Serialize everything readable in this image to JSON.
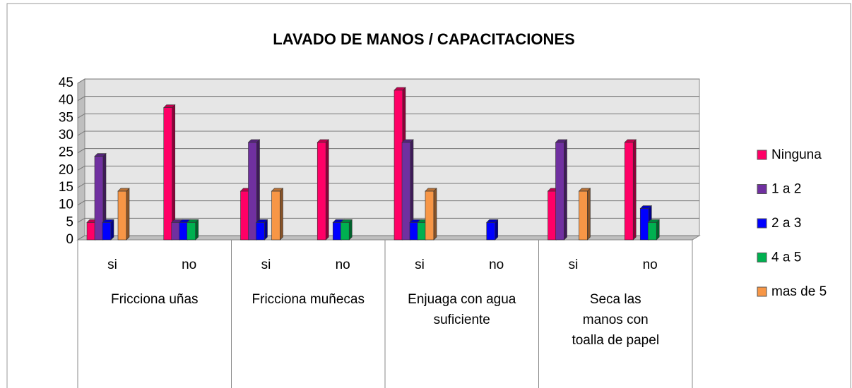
{
  "chart_data": {
    "type": "bar",
    "title": "LAVADO DE MANOS / CAPACITACIONES",
    "categories": [
      "si",
      "no",
      "si",
      "no",
      "si",
      "no",
      "si",
      "no"
    ],
    "groups": [
      "Fricciona uñas",
      "Fricciona muñecas",
      "Enjuaga con agua suficiente",
      "Seca las manos con toalla de papel"
    ],
    "series": [
      {
        "name": "Ninguna",
        "color": "#ff0066",
        "values": [
          5,
          38,
          14,
          28,
          43,
          0,
          14,
          28
        ]
      },
      {
        "name": "1 a 2",
        "color": "#7030a0",
        "values": [
          24,
          5,
          28,
          0,
          28,
          0,
          28,
          0
        ]
      },
      {
        "name": "2 a 3",
        "color": "#0000ff",
        "values": [
          5,
          5,
          5,
          5,
          5,
          5,
          0,
          9
        ]
      },
      {
        "name": "4 a 5",
        "color": "#00b050",
        "values": [
          0,
          5,
          0,
          5,
          5,
          0,
          0,
          5
        ]
      },
      {
        "name": "mas de 5",
        "color": "#f79646",
        "values": [
          14,
          0,
          14,
          0,
          14,
          0,
          14,
          0
        ]
      }
    ],
    "ylim": [
      0,
      45
    ],
    "yticks": [
      0,
      5,
      10,
      15,
      20,
      25,
      30,
      35,
      40,
      45
    ],
    "grid": true,
    "legend": "right"
  }
}
